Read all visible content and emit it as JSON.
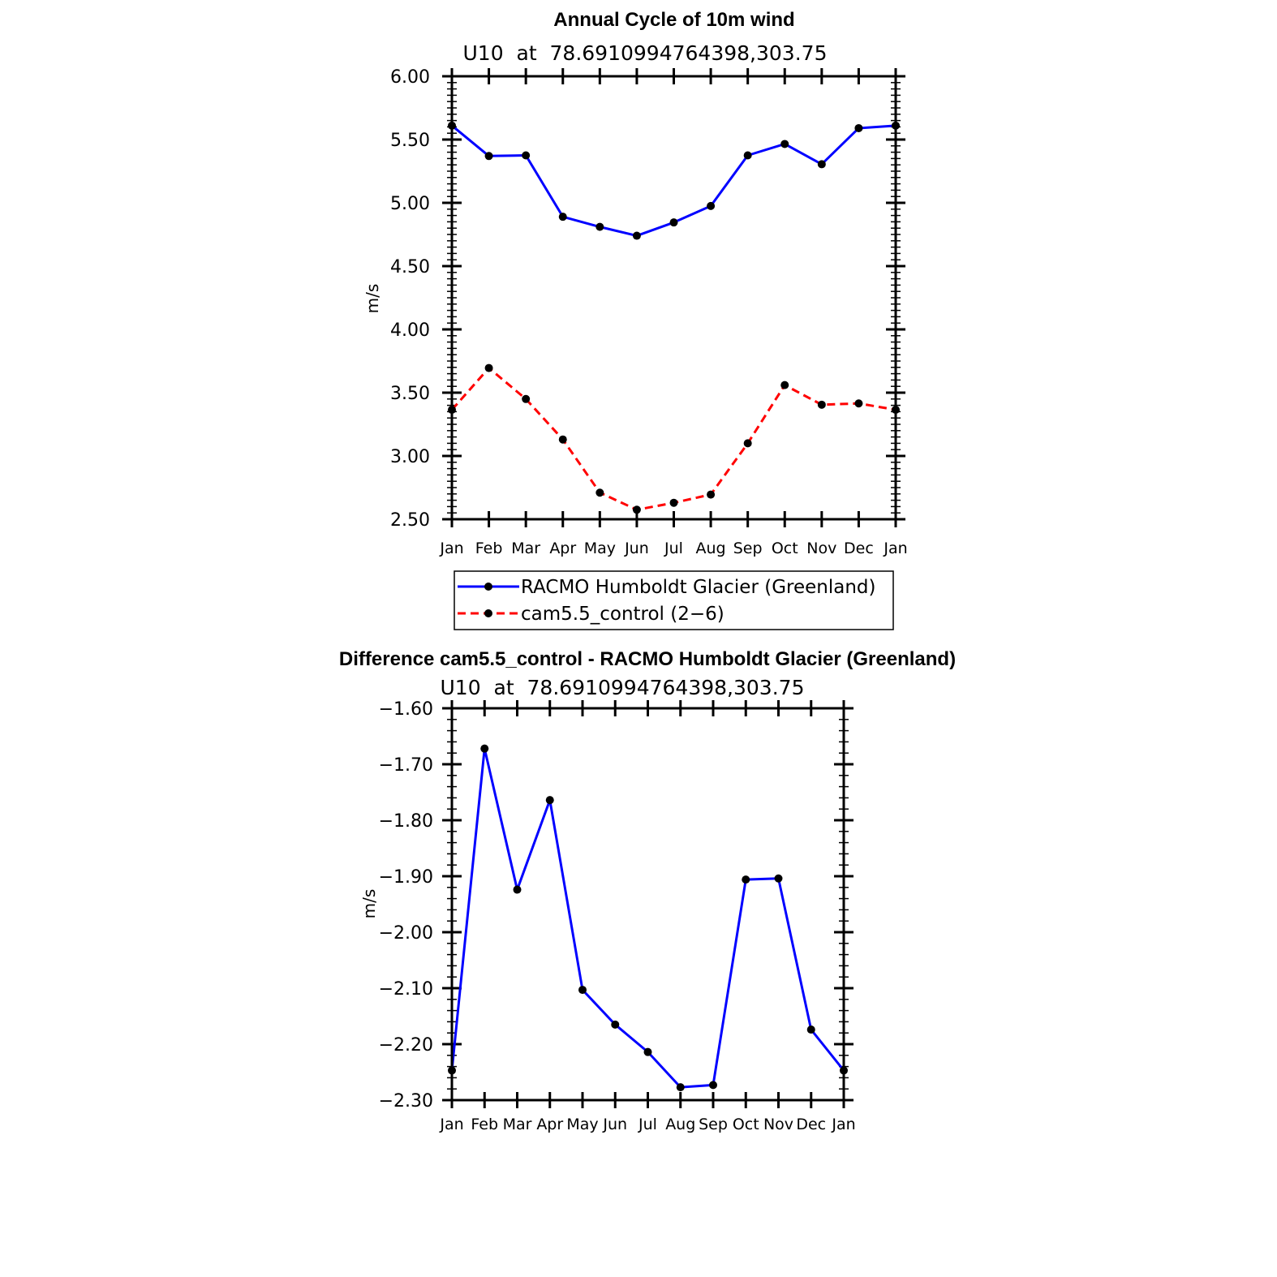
{
  "chart_data": [
    {
      "type": "line",
      "title": "Annual Cycle of 10m wind",
      "subtitle": "U10  at  78.6910994764398,303.75",
      "ylabel": "m/s",
      "xlabel": "",
      "categories": [
        "Jan",
        "Feb",
        "Mar",
        "Apr",
        "May",
        "Jun",
        "Jul",
        "Aug",
        "Sep",
        "Oct",
        "Nov",
        "Dec",
        "Jan"
      ],
      "ylim": [
        2.5,
        6.0
      ],
      "yticks": [
        "6.00",
        "5.50",
        "5.00",
        "4.50",
        "4.00",
        "3.50",
        "3.00",
        "2.50"
      ],
      "series": [
        {
          "name": "RACMO Humboldt Glacier (Greenland)",
          "color": "#0000ff",
          "dash": "solid",
          "values": [
            5.61,
            5.37,
            5.375,
            4.89,
            4.81,
            4.74,
            4.845,
            4.975,
            5.375,
            5.465,
            5.305,
            5.59,
            5.61
          ]
        },
        {
          "name": "cam5.5_control (2−6)",
          "color": "#ff0000",
          "dash": "dashed",
          "values": [
            3.365,
            3.695,
            3.45,
            3.13,
            2.71,
            2.575,
            2.63,
            2.695,
            3.1,
            3.56,
            3.405,
            3.415,
            3.365
          ]
        }
      ],
      "legend": "below"
    },
    {
      "type": "line",
      "title": "Difference cam5.5_control - RACMO Humboldt Glacier (Greenland)",
      "subtitle": "U10  at  78.6910994764398,303.75",
      "ylabel": "m/s",
      "xlabel": "",
      "categories": [
        "Jan",
        "Feb",
        "Mar",
        "Apr",
        "May",
        "Jun",
        "Jul",
        "Aug",
        "Sep",
        "Oct",
        "Nov",
        "Dec",
        "Jan"
      ],
      "ylim": [
        -2.3,
        -1.6
      ],
      "yticks": [
        "−1.60",
        "−1.70",
        "−1.80",
        "−1.90",
        "−2.00",
        "−2.10",
        "−2.20",
        "−2.30"
      ],
      "series": [
        {
          "color": "#0000ff",
          "dash": "solid",
          "values": [
            -2.247,
            -1.672,
            -1.924,
            -1.764,
            -2.103,
            -2.165,
            -2.214,
            -2.277,
            -2.273,
            -1.906,
            -1.904,
            -2.174,
            -2.247
          ]
        }
      ]
    }
  ]
}
